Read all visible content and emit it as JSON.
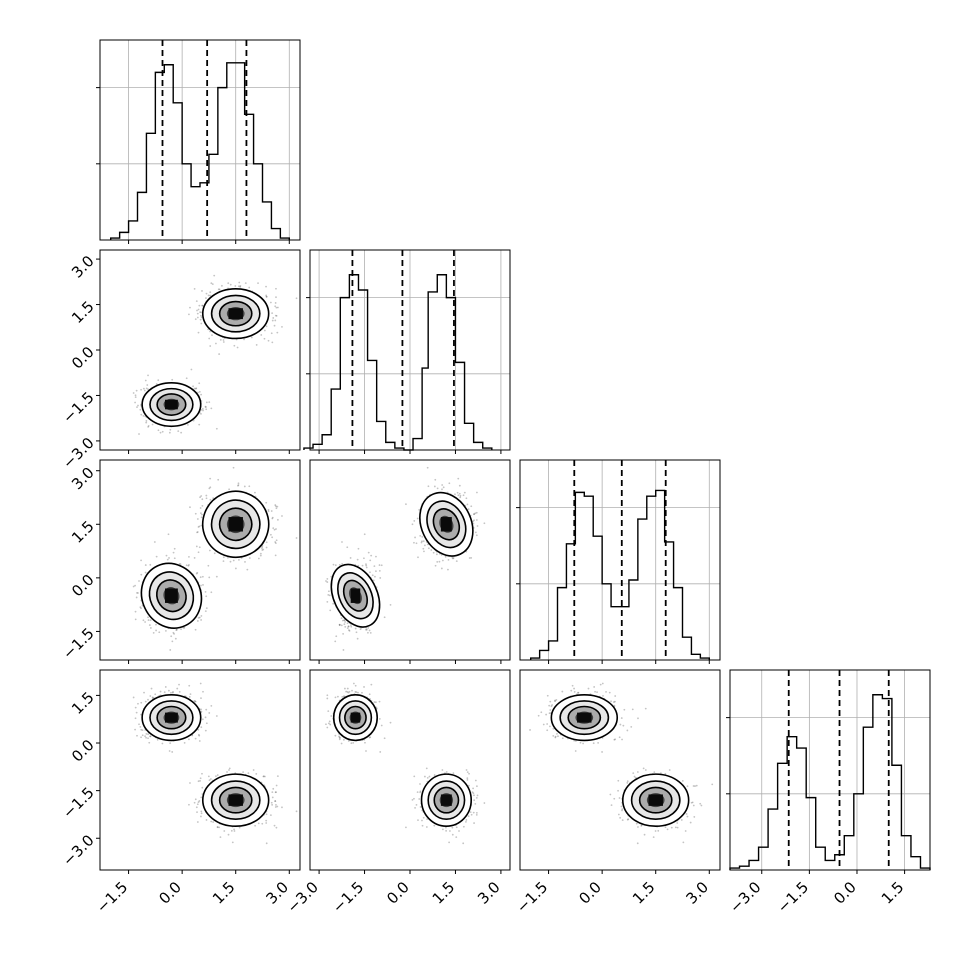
{
  "chart_data": {
    "type": "corner",
    "title": "",
    "n_params": 4,
    "parameter_labels": [
      "",
      "",
      "",
      ""
    ],
    "param_ranges": [
      [
        -2.3,
        3.3
      ],
      [
        -3.3,
        3.3
      ],
      [
        -2.3,
        3.3
      ],
      [
        -4.0,
        2.3
      ]
    ],
    "tick_values": [
      [
        -1.5,
        0.0,
        1.5,
        3.0
      ],
      [
        -3.0,
        -1.5,
        0.0,
        1.5,
        3.0
      ],
      [
        -1.5,
        0.0,
        1.5,
        3.0
      ],
      [
        -3.0,
        -1.5,
        0.0,
        1.5
      ]
    ],
    "tick_labels": [
      [
        "−1.5",
        "0.0",
        "1.5",
        "3.0"
      ],
      [
        "−3.0",
        "−1.5",
        "0.0",
        "1.5",
        "3.0"
      ],
      [
        "−1.5",
        "0.0",
        "1.5",
        "3.0"
      ],
      [
        "−3.0",
        "−1.5",
        "0.0",
        "1.5"
      ]
    ],
    "grid": true,
    "quantiles": [
      [
        -0.55,
        0.7,
        1.8
      ],
      [
        -1.9,
        -0.25,
        1.45
      ],
      [
        -0.78,
        0.55,
        1.78
      ],
      [
        -2.15,
        -0.55,
        1.0
      ]
    ],
    "modes": [
      {
        "weight": 0.5,
        "mean": [
          -0.3,
          -1.8,
          -0.5,
          0.8
        ],
        "sd": [
          0.4,
          0.35,
          0.45,
          0.35
        ]
      },
      {
        "weight": 0.5,
        "mean": [
          1.5,
          1.2,
          1.5,
          -1.8
        ],
        "sd": [
          0.45,
          0.4,
          0.45,
          0.4
        ]
      }
    ],
    "histograms": [
      {
        "bin_edges": [
          -2.0,
          -1.75,
          -1.5,
          -1.25,
          -1.0,
          -0.75,
          -0.5,
          -0.25,
          0.0,
          0.25,
          0.5,
          0.75,
          1.0,
          1.25,
          1.5,
          1.75,
          2.0,
          2.25,
          2.5,
          2.75,
          3.0
        ],
        "counts": [
          0.01,
          0.04,
          0.1,
          0.25,
          0.56,
          0.88,
          0.92,
          0.72,
          0.4,
          0.28,
          0.3,
          0.45,
          0.8,
          0.93,
          0.93,
          0.66,
          0.4,
          0.2,
          0.06,
          0.01
        ]
      },
      {
        "bin_edges": [
          -3.5,
          -3.2,
          -2.9,
          -2.6,
          -2.3,
          -2.0,
          -1.7,
          -1.4,
          -1.1,
          -0.8,
          -0.5,
          -0.2,
          0.1,
          0.4,
          0.6,
          0.9,
          1.2,
          1.5,
          1.8,
          2.1,
          2.4,
          2.7
        ],
        "counts": [
          0.01,
          0.03,
          0.08,
          0.32,
          0.8,
          0.92,
          0.84,
          0.47,
          0.15,
          0.04,
          0.01,
          0.0,
          0.06,
          0.43,
          0.83,
          0.92,
          0.8,
          0.46,
          0.14,
          0.04,
          0.01
        ]
      },
      {
        "bin_edges": [
          -2.0,
          -1.75,
          -1.5,
          -1.25,
          -1.0,
          -0.75,
          -0.5,
          -0.25,
          0.0,
          0.25,
          0.5,
          0.75,
          1.0,
          1.25,
          1.5,
          1.75,
          2.0,
          2.25,
          2.5,
          2.75,
          3.0
        ],
        "counts": [
          0.01,
          0.05,
          0.1,
          0.38,
          0.61,
          0.88,
          0.86,
          0.65,
          0.4,
          0.28,
          0.28,
          0.42,
          0.74,
          0.86,
          0.89,
          0.62,
          0.38,
          0.12,
          0.03,
          0.01
        ]
      },
      {
        "bin_edges": [
          -4.0,
          -3.7,
          -3.4,
          -3.1,
          -2.8,
          -2.5,
          -2.2,
          -1.9,
          -1.6,
          -1.3,
          -1.0,
          -0.7,
          -0.4,
          -0.1,
          0.2,
          0.5,
          0.8,
          1.1,
          1.4,
          1.7,
          2.0,
          2.3
        ],
        "counts": [
          0.01,
          0.02,
          0.05,
          0.12,
          0.32,
          0.56,
          0.7,
          0.64,
          0.38,
          0.12,
          0.05,
          0.08,
          0.18,
          0.4,
          0.75,
          0.92,
          0.9,
          0.55,
          0.18,
          0.07,
          0.01
        ]
      }
    ]
  }
}
